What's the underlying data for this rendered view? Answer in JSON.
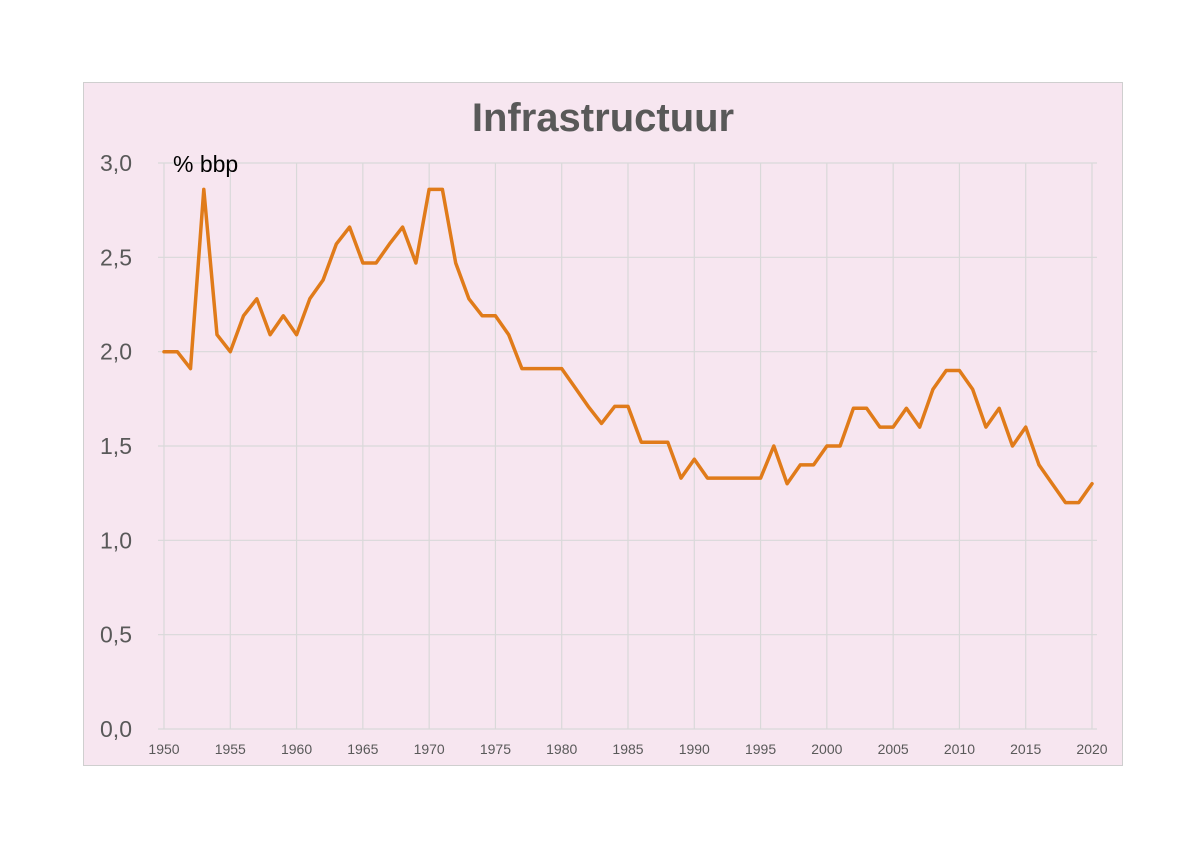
{
  "colors": {
    "plot_background": "#f7e6f0",
    "gridline": "#d9d9d9",
    "line": "#e07b1a",
    "text": "#595959"
  },
  "chart_data": {
    "type": "line",
    "title": "Infrastructuur",
    "unit_label": "% bbp",
    "xlabel": "",
    "ylabel": "",
    "xlim": [
      1950,
      2020
    ],
    "ylim": [
      0,
      3
    ],
    "grid": true,
    "x_ticks": [
      1950,
      1955,
      1960,
      1965,
      1970,
      1975,
      1980,
      1985,
      1990,
      1995,
      2000,
      2005,
      2010,
      2015,
      2020
    ],
    "x_tick_labels": [
      "1950",
      "1955",
      "1960",
      "1965",
      "1970",
      "1975",
      "1980",
      "1985",
      "1990",
      "1995",
      "2000",
      "2005",
      "2010",
      "2015",
      "2020"
    ],
    "y_ticks": [
      0,
      0.5,
      1,
      1.5,
      2,
      2.5,
      3
    ],
    "y_tick_labels": [
      "0,0",
      "0,5",
      "1,0",
      "1,5",
      "2,0",
      "2,5",
      "3,0"
    ],
    "series": [
      {
        "x": [
          1950,
          1951,
          1952,
          1953,
          1954,
          1955,
          1956,
          1957,
          1958,
          1959,
          1960,
          1961,
          1962,
          1963,
          1964,
          1965,
          1966,
          1967,
          1968,
          1969,
          1970,
          1971,
          1972,
          1973,
          1974,
          1975,
          1976,
          1977,
          1978,
          1979,
          1980,
          1981,
          1982,
          1983,
          1984,
          1985,
          1986,
          1987,
          1988,
          1989,
          1990,
          1991,
          1992,
          1993,
          1994,
          1995,
          1996,
          1997,
          1998,
          1999,
          2000,
          2001,
          2002,
          2003,
          2004,
          2005,
          2006,
          2007,
          2008,
          2009,
          2010,
          2011,
          2012,
          2013,
          2014,
          2015,
          2016,
          2017,
          2018,
          2019,
          2020
        ],
        "values": [
          2.0,
          2.0,
          1.91,
          2.86,
          2.09,
          2.0,
          2.19,
          2.28,
          2.09,
          2.19,
          2.09,
          2.28,
          2.38,
          2.57,
          2.66,
          2.47,
          2.47,
          2.57,
          2.66,
          2.47,
          2.86,
          2.86,
          2.47,
          2.28,
          2.19,
          2.19,
          2.09,
          1.91,
          1.91,
          1.91,
          1.91,
          1.81,
          1.71,
          1.62,
          1.71,
          1.71,
          1.52,
          1.52,
          1.52,
          1.33,
          1.43,
          1.33,
          1.33,
          1.33,
          1.33,
          1.33,
          1.5,
          1.3,
          1.4,
          1.4,
          1.5,
          1.5,
          1.7,
          1.7,
          1.6,
          1.6,
          1.7,
          1.6,
          1.8,
          1.9,
          1.9,
          1.8,
          1.6,
          1.7,
          1.5,
          1.6,
          1.4,
          1.3,
          1.2,
          1.2,
          1.3
        ]
      }
    ]
  }
}
